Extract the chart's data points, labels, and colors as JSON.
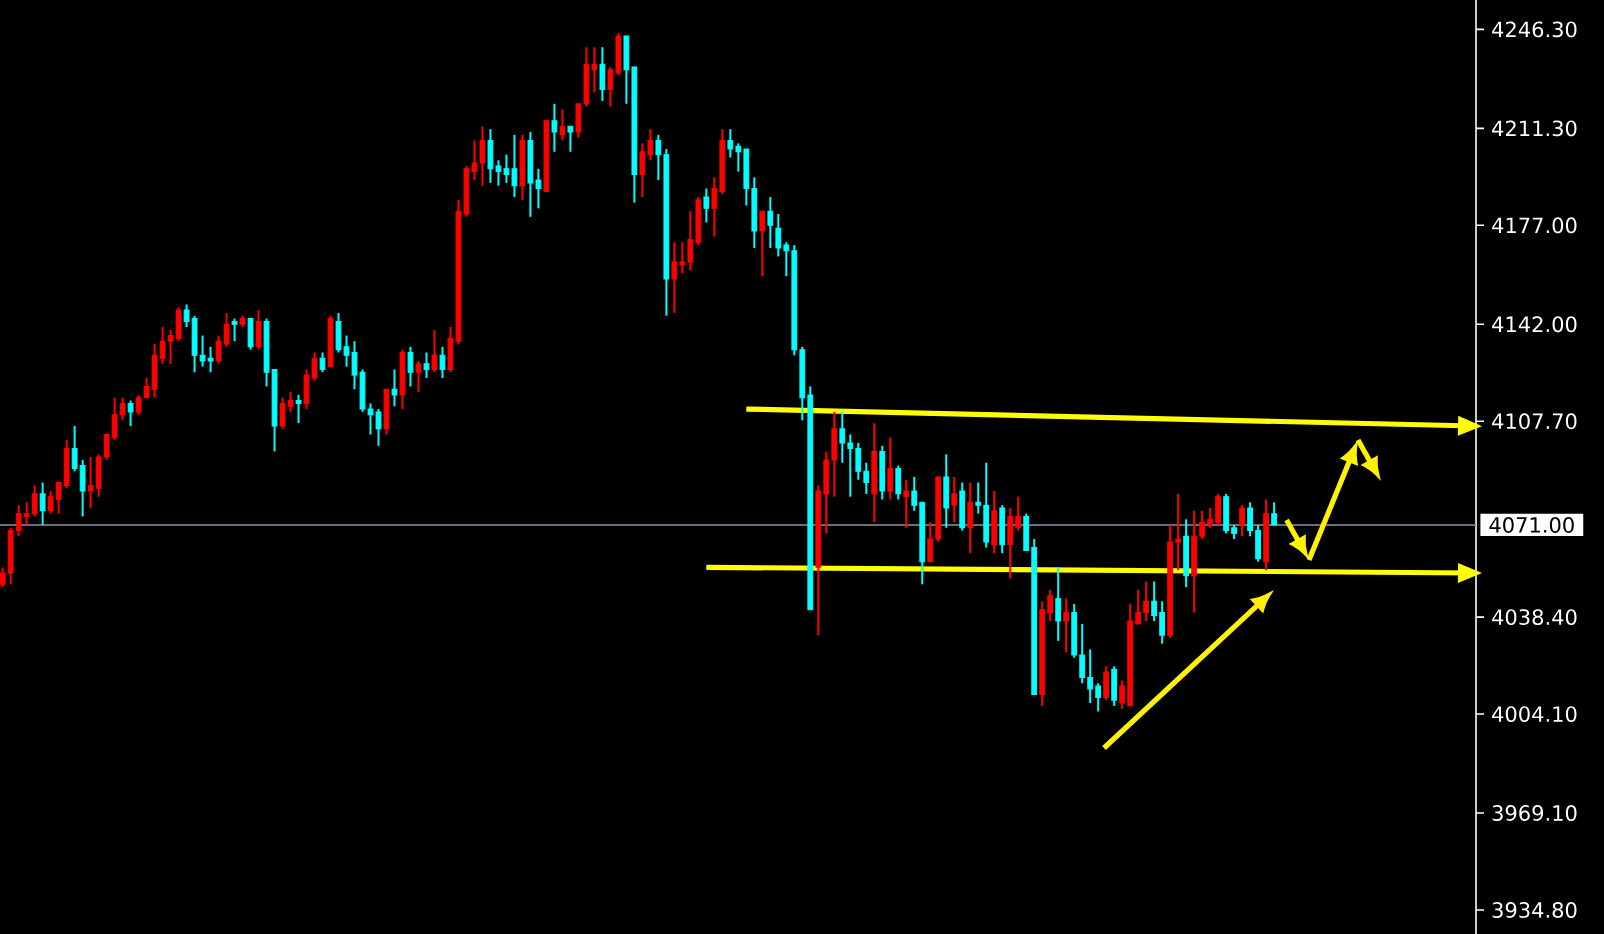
{
  "chart_data": {
    "type": "candlestick",
    "tick_labels": "y",
    "categories": [
      null,
      null,
      null,
      null,
      null,
      null,
      null,
      null,
      null,
      null,
      null,
      null,
      null,
      null,
      null,
      null,
      null,
      null,
      null,
      null,
      null,
      null,
      null,
      null,
      null,
      null,
      null,
      null,
      null,
      null,
      null,
      null,
      null,
      null,
      null,
      null,
      null,
      null,
      null,
      null,
      null,
      null,
      null,
      null,
      null,
      null,
      null,
      null,
      null,
      null,
      null,
      null,
      null,
      null,
      null,
      null,
      null,
      null,
      null,
      null,
      null,
      null,
      null,
      null,
      null,
      null,
      null,
      null,
      null,
      null,
      null,
      null,
      null,
      null,
      null,
      null,
      null,
      null,
      null,
      null,
      null,
      null,
      null,
      null,
      null,
      null,
      null,
      null,
      null,
      null,
      null,
      null,
      null,
      null,
      null,
      null,
      null,
      null,
      null,
      null,
      null,
      null,
      null,
      null,
      null,
      null,
      null,
      null,
      null,
      null,
      null,
      null,
      null,
      null,
      null,
      null,
      null,
      null,
      null,
      null,
      null,
      null,
      null,
      null,
      null,
      null,
      null,
      null,
      null,
      null,
      null,
      null,
      null,
      null,
      null,
      null,
      null,
      null,
      null,
      null,
      null,
      null,
      null,
      null,
      null,
      null,
      null,
      null,
      null,
      null,
      null,
      null,
      null,
      null,
      null,
      null,
      null,
      null,
      null,
      null,
      null,
      null,
      null,
      null,
      null,
      null,
      null,
      null,
      null,
      null,
      null,
      null,
      null,
      null,
      null,
      null,
      null,
      null,
      null,
      null,
      null,
      null,
      null,
      null,
      null
    ],
    "ylim": [
      3926.3,
      4256.7
    ],
    "yticks": [
      {
        "value": 4246.3,
        "label": "4246.30"
      },
      {
        "value": 4211.3,
        "label": "4211.30"
      },
      {
        "value": 4177,
        "label": "4177.00"
      },
      {
        "value": 4142,
        "label": "4142.00"
      },
      {
        "value": 4107.7,
        "label": "4107.70"
      },
      {
        "value": 4038.4,
        "label": "4038.40"
      },
      {
        "value": 4004.1,
        "label": "4004.10"
      },
      {
        "value": 3969.1,
        "label": "3969.10"
      },
      {
        "value": 3934.8,
        "label": "3934.80"
      }
    ],
    "ref_lines": [
      {
        "axis": "y",
        "value": 4071,
        "label": "4071.00",
        "color": "#8795a8"
      }
    ],
    "series": [
      {
        "ohlc": [
          [
            4050,
            4056,
            4049,
            4054
          ],
          [
            4054,
            4070,
            4050,
            4069
          ],
          [
            4069,
            4078,
            4067,
            4075
          ],
          [
            4074,
            4079,
            4071,
            4075
          ],
          [
            4075,
            4085,
            4074,
            4082
          ],
          [
            4082,
            4086,
            4071,
            4076
          ],
          [
            4076,
            4083,
            4075,
            4081
          ],
          [
            4080,
            4086,
            4075,
            4086
          ],
          [
            4085,
            4101,
            4084,
            4098
          ],
          [
            4098,
            4106,
            4090,
            4091
          ],
          [
            4092,
            4094,
            4074,
            4083
          ],
          [
            4083,
            4095,
            4077,
            4085
          ],
          [
            4084,
            4096,
            4081,
            4095
          ],
          [
            4095,
            4103,
            4094,
            4103
          ],
          [
            4102,
            4116,
            4101,
            4110
          ],
          [
            4110,
            4116,
            4108,
            4114
          ],
          [
            4114,
            4115,
            4106,
            4111
          ],
          [
            4111,
            4117,
            4110,
            4116
          ],
          [
            4116,
            4123,
            4116,
            4120
          ],
          [
            4119,
            4135,
            4116,
            4131
          ],
          [
            4130,
            4141,
            4128,
            4136
          ],
          [
            4136,
            4140,
            4128,
            4138
          ],
          [
            4137,
            4148,
            4136,
            4147
          ],
          [
            4147,
            4149,
            4141,
            4143
          ],
          [
            4144,
            4145,
            4125,
            4131
          ],
          [
            4131,
            4138,
            4127,
            4129
          ],
          [
            4130,
            4134,
            4125,
            4129
          ],
          [
            4129,
            4138,
            4128,
            4136
          ],
          [
            4135,
            4146,
            4134,
            4142
          ],
          [
            4143,
            4144,
            4136,
            4142
          ],
          [
            4142,
            4145,
            4141,
            4144
          ],
          [
            4144,
            4144,
            4133,
            4134
          ],
          [
            4134,
            4147,
            4133,
            4143
          ],
          [
            4143,
            4144,
            4120,
            4125
          ],
          [
            4126,
            4126,
            4097,
            4106
          ],
          [
            4106,
            4116,
            4105,
            4114
          ],
          [
            4113,
            4118,
            4111,
            4115
          ],
          [
            4115,
            4117,
            4107,
            4114
          ],
          [
            4114,
            4126,
            4112,
            4124
          ],
          [
            4123,
            4132,
            4122,
            4130
          ],
          [
            4130,
            4132,
            4125,
            4126
          ],
          [
            4127,
            4145,
            4127,
            4144
          ],
          [
            4143,
            4146,
            4132,
            4133
          ],
          [
            4134,
            4138,
            4127,
            4131
          ],
          [
            4132,
            4136,
            4119,
            4124
          ],
          [
            4125,
            4126,
            4111,
            4112
          ],
          [
            4112,
            4114,
            4103,
            4110
          ],
          [
            4111,
            4112,
            4099,
            4105
          ],
          [
            4105,
            4119,
            4103,
            4119
          ],
          [
            4119,
            4126,
            4113,
            4117
          ],
          [
            4117,
            4133,
            4112,
            4132
          ],
          [
            4132,
            4134,
            4120,
            4125
          ],
          [
            4125,
            4129,
            4118,
            4128
          ],
          [
            4128,
            4132,
            4123,
            4126
          ],
          [
            4126,
            4140,
            4125,
            4131
          ],
          [
            4131,
            4134,
            4123,
            4126
          ],
          [
            4126,
            4141,
            4125,
            4137
          ],
          [
            4136,
            4186,
            4135,
            4182
          ],
          [
            4181,
            4198,
            4180,
            4197
          ],
          [
            4196,
            4207,
            4193,
            4199
          ],
          [
            4199,
            4212,
            4191,
            4207
          ],
          [
            4207,
            4211,
            4192,
            4197
          ],
          [
            4198,
            4200,
            4191,
            4196
          ],
          [
            4197,
            4202,
            4192,
            4195
          ],
          [
            4197,
            4209,
            4187,
            4191
          ],
          [
            4191,
            4209,
            4186,
            4207
          ],
          [
            4207,
            4210,
            4180,
            4192
          ],
          [
            4193,
            4197,
            4183,
            4190
          ],
          [
            4189,
            4214,
            4189,
            4214
          ],
          [
            4214,
            4220,
            4203,
            4210
          ],
          [
            4209,
            4218,
            4207,
            4212
          ],
          [
            4212,
            4212,
            4203,
            4210
          ],
          [
            4210,
            4220,
            4208,
            4220
          ],
          [
            4220,
            4240,
            4219,
            4234
          ],
          [
            4232,
            4240,
            4224,
            4234
          ],
          [
            4234,
            4240,
            4221,
            4225
          ],
          [
            4225,
            4233,
            4219,
            4232
          ],
          [
            4231,
            4245,
            4230,
            4244
          ],
          [
            4244,
            4244,
            4220,
            4232
          ],
          [
            4233,
            4233,
            4185,
            4195
          ],
          [
            4195,
            4206,
            4187,
            4203
          ],
          [
            4202,
            4211,
            4200,
            4207
          ],
          [
            4207,
            4209,
            4193,
            4202
          ],
          [
            4202,
            4204,
            4145,
            4158
          ],
          [
            4158,
            4171,
            4146,
            4164
          ],
          [
            4163,
            4171,
            4160,
            4164
          ],
          [
            4164,
            4182,
            4161,
            4172
          ],
          [
            4171,
            4187,
            4170,
            4186
          ],
          [
            4187,
            4190,
            4178,
            4183
          ],
          [
            4183,
            4194,
            4173,
            4190
          ],
          [
            4189,
            4211,
            4188,
            4207
          ],
          [
            4207,
            4211,
            4201,
            4204
          ],
          [
            4205,
            4206,
            4196,
            4203
          ],
          [
            4204,
            4204,
            4184,
            4190
          ],
          [
            4190,
            4194,
            4169,
            4175
          ],
          [
            4175,
            4182,
            4159,
            4182
          ],
          [
            4182,
            4187,
            4169,
            4177
          ],
          [
            4176,
            4181,
            4166,
            4169
          ],
          [
            4170,
            4171,
            4159,
            4168
          ],
          [
            4168,
            4170,
            4131,
            4133
          ],
          [
            4133,
            4134,
            4108,
            4116
          ],
          [
            4117,
            4120,
            4041,
            4041
          ],
          [
            4056,
            4085,
            4032,
            4083
          ],
          [
            4082,
            4097,
            4068,
            4094
          ],
          [
            4094,
            4111,
            4081,
            4105
          ],
          [
            4105,
            4111,
            4093,
            4100
          ],
          [
            4100,
            4103,
            4081,
            4098
          ],
          [
            4098,
            4100,
            4087,
            4090
          ],
          [
            4090,
            4093,
            4082,
            4086
          ],
          [
            4082,
            4107,
            4072,
            4097
          ],
          [
            4097,
            4099,
            4080,
            4083
          ],
          [
            4083,
            4102,
            4080,
            4091
          ],
          [
            4091,
            4092,
            4080,
            4082
          ],
          [
            4081,
            4087,
            4070,
            4083
          ],
          [
            4083,
            4088,
            4076,
            4078
          ],
          [
            4079,
            4079,
            4050,
            4058
          ],
          [
            4058,
            4072,
            4058,
            4066
          ],
          [
            4066,
            4088,
            4065,
            4088
          ],
          [
            4088,
            4096,
            4070,
            4077
          ],
          [
            4078,
            4088,
            4072,
            4082
          ],
          [
            4083,
            4086,
            4069,
            4070
          ],
          [
            4070,
            4086,
            4061,
            4079
          ],
          [
            4079,
            4086,
            4075,
            4078
          ],
          [
            4078,
            4093,
            4063,
            4065
          ],
          [
            4064,
            4083,
            4061,
            4076
          ],
          [
            4077,
            4078,
            4061,
            4064
          ],
          [
            4064,
            4077,
            4052,
            4074
          ],
          [
            4070,
            4081,
            4069,
            4074
          ],
          [
            4074,
            4075,
            4062,
            4062
          ],
          [
            4063,
            4066,
            4011,
            4011
          ],
          [
            4011,
            4044,
            4007,
            4041
          ],
          [
            4040,
            4048,
            4037,
            4046
          ],
          [
            4045,
            4056,
            4030,
            4037
          ],
          [
            4037,
            4045,
            4026,
            4040
          ],
          [
            4040,
            4043,
            4024,
            4025
          ],
          [
            4025,
            4036,
            4015,
            4017
          ],
          [
            4017,
            4027,
            4008,
            4013
          ],
          [
            4014,
            4015,
            4005,
            4010
          ],
          [
            4010,
            4021,
            4009,
            4019
          ],
          [
            4020,
            4021,
            4007,
            4009
          ],
          [
            4008,
            4016,
            4006,
            4014
          ],
          [
            4007,
            4043,
            4007,
            4037
          ],
          [
            4036,
            4048,
            4036,
            4040
          ],
          [
            4040,
            4051,
            4037,
            4044
          ],
          [
            4044,
            4051,
            4037,
            4039
          ],
          [
            4040,
            4044,
            4029,
            4032
          ],
          [
            4032,
            4071,
            4031,
            4065
          ],
          [
            4065,
            4082,
            4055,
            4066
          ],
          [
            4067,
            4073,
            4049,
            4053
          ],
          [
            4053,
            4076,
            4040,
            4067
          ],
          [
            4067,
            4076,
            4066,
            4072
          ],
          [
            4071,
            4077,
            4070,
            4073
          ],
          [
            4072,
            4082,
            4071,
            4081
          ],
          [
            4081,
            4082,
            4068,
            4069
          ],
          [
            4070,
            4071,
            4066,
            4068
          ],
          [
            4071,
            4078,
            4067,
            4077
          ],
          [
            4077,
            4079,
            4067,
            4069
          ],
          [
            4069,
            4071,
            4058,
            4059
          ],
          [
            4058,
            4080,
            4055,
            4075
          ],
          [
            4075,
            4079,
            4071,
            4071
          ],
          null,
          null,
          null,
          null,
          null,
          null,
          null,
          null,
          null,
          null,
          null,
          null,
          null,
          null,
          null,
          null,
          null,
          null,
          null,
          null,
          null,
          null,
          null,
          null,
          null
        ],
        "colors": [
          "#ff0000",
          "#ff0000",
          "#ff0000",
          "#ff0000",
          "#ff0000",
          "#00ffff",
          "#ff0000",
          "#ff0000",
          "#ff0000",
          "#00ffff",
          "#00ffff",
          "#ff0000",
          "#ff0000",
          "#ff0000",
          "#ff0000",
          "#ff0000",
          "#00ffff",
          "#ff0000",
          "#ff0000",
          "#ff0000",
          "#ff0000",
          "#ff0000",
          "#ff0000",
          "#00ffff",
          "#00ffff",
          "#00ffff",
          "#00ffff",
          "#ff0000",
          "#ff0000",
          "#00ffff",
          "#ff0000",
          "#00ffff",
          "#ff0000",
          "#00ffff",
          "#00ffff",
          "#ff0000",
          "#ff0000",
          "#00ffff",
          "#ff0000",
          "#ff0000",
          "#00ffff",
          "#ff0000",
          "#00ffff",
          "#00ffff",
          "#00ffff",
          "#00ffff",
          "#00ffff",
          "#00ffff",
          "#ff0000",
          "#00ffff",
          "#ff0000",
          "#00ffff",
          "#ff0000",
          "#00ffff",
          "#ff0000",
          "#00ffff",
          "#ff0000",
          "#ff0000",
          "#ff0000",
          "#ff0000",
          "#ff0000",
          "#00ffff",
          "#00ffff",
          "#00ffff",
          "#00ffff",
          "#ff0000",
          "#00ffff",
          "#00ffff",
          "#ff0000",
          "#00ffff",
          "#ff0000",
          "#00ffff",
          "#ff0000",
          "#ff0000",
          "#ff0000",
          "#00ffff",
          "#ff0000",
          "#ff0000",
          "#00ffff",
          "#00ffff",
          "#ff0000",
          "#ff0000",
          "#00ffff",
          "#00ffff",
          "#ff0000",
          "#ff0000",
          "#ff0000",
          "#ff0000",
          "#00ffff",
          "#ff0000",
          "#ff0000",
          "#00ffff",
          "#00ffff",
          "#00ffff",
          "#00ffff",
          "#ff0000",
          "#00ffff",
          "#00ffff",
          "#00ffff",
          "#00ffff",
          "#00ffff",
          "#00ffff",
          "#ff0000",
          "#ff0000",
          "#ff0000",
          "#00ffff",
          "#00ffff",
          "#00ffff",
          "#00ffff",
          "#ff0000",
          "#00ffff",
          "#ff0000",
          "#00ffff",
          "#ff0000",
          "#00ffff",
          "#00ffff",
          "#ff0000",
          "#ff0000",
          "#00ffff",
          "#ff0000",
          "#00ffff",
          "#ff0000",
          "#00ffff",
          "#00ffff",
          "#ff0000",
          "#00ffff",
          "#ff0000",
          "#ff0000",
          "#00ffff",
          "#00ffff",
          "#ff0000",
          "#ff0000",
          "#00ffff",
          "#ff0000",
          "#00ffff",
          "#00ffff",
          "#00ffff",
          "#00ffff",
          "#ff0000",
          "#00ffff",
          "#ff0000",
          "#ff0000",
          "#ff0000",
          "#ff0000",
          "#00ffff",
          "#00ffff",
          "#ff0000",
          "#ff0000",
          "#00ffff",
          "#ff0000",
          "#ff0000",
          "#ff0000",
          "#ff0000",
          "#00ffff",
          "#00ffff",
          "#ff0000",
          "#00ffff",
          "#00ffff",
          "#ff0000",
          "#00ffff",
          null,
          null,
          null,
          null,
          null,
          null,
          null,
          null,
          null,
          null,
          null,
          null,
          null,
          null,
          null,
          null,
          null,
          null,
          null,
          null,
          null,
          null,
          null,
          null,
          null
        ]
      },
      {
        "type": "line",
        "color": "#ffff00",
        "values": [
          null,
          null,
          null,
          null,
          null,
          null,
          null,
          null,
          null,
          null,
          null,
          null,
          null,
          null,
          null,
          null,
          null,
          null,
          null,
          null,
          null,
          null,
          null,
          null,
          null,
          null,
          null,
          null,
          null,
          null,
          null,
          null,
          null,
          null,
          null,
          null,
          null,
          null,
          null,
          null,
          null,
          null,
          null,
          null,
          null,
          null,
          null,
          null,
          null,
          null,
          null,
          null,
          null,
          null,
          null,
          null,
          null,
          null,
          null,
          null,
          null,
          null,
          null,
          null,
          null,
          null,
          null,
          null,
          null,
          null,
          null,
          null,
          null,
          null,
          null,
          null,
          null,
          null,
          null,
          null,
          null,
          null,
          null,
          null,
          null,
          null,
          null,
          null,
          null,
          null,
          null,
          null,
          null,
          4112,
          null,
          null,
          null,
          null,
          null,
          null,
          null,
          null,
          null,
          null,
          null,
          null,
          null,
          null,
          null,
          null,
          null,
          null,
          null,
          null,
          null,
          null,
          null,
          null,
          null,
          null,
          null,
          null,
          null,
          null,
          null,
          null,
          null,
          null,
          null,
          null,
          null,
          null,
          null,
          null,
          null,
          null,
          null,
          null,
          null,
          null,
          null,
          null,
          null,
          null,
          null,
          null,
          null,
          null,
          null,
          null,
          null,
          null,
          null,
          null,
          null,
          null,
          null,
          null,
          null,
          null,
          null,
          null,
          null,
          null,
          null,
          null,
          null,
          null,
          null,
          null,
          null,
          null,
          null,
          null,
          null,
          null,
          null,
          null,
          null,
          null,
          null,
          null,
          null,
          null,
          4106
        ]
      },
      {
        "type": "line",
        "color": "#ffff00",
        "values": [
          null,
          null,
          null,
          null,
          null,
          null,
          null,
          null,
          null,
          null,
          null,
          null,
          null,
          null,
          null,
          null,
          null,
          null,
          null,
          null,
          null,
          null,
          null,
          null,
          null,
          null,
          null,
          null,
          null,
          null,
          null,
          null,
          null,
          null,
          null,
          null,
          null,
          null,
          null,
          null,
          null,
          null,
          null,
          null,
          null,
          null,
          null,
          null,
          null,
          null,
          null,
          null,
          null,
          null,
          null,
          null,
          null,
          null,
          null,
          null,
          null,
          null,
          null,
          null,
          null,
          null,
          null,
          null,
          null,
          null,
          null,
          null,
          null,
          null,
          null,
          null,
          null,
          null,
          null,
          null,
          null,
          null,
          null,
          null,
          null,
          null,
          null,
          null,
          4056,
          null,
          null,
          null,
          null,
          null,
          null,
          null,
          null,
          null,
          null,
          null,
          null,
          null,
          null,
          null,
          null,
          null,
          null,
          null,
          null,
          null,
          null,
          null,
          null,
          null,
          null,
          null,
          null,
          null,
          null,
          null,
          null,
          null,
          null,
          null,
          null,
          null,
          null,
          null,
          null,
          null,
          null,
          null,
          null,
          null,
          null,
          null,
          null,
          null,
          null,
          null,
          null,
          null,
          null,
          null,
          null,
          null,
          null,
          null,
          null,
          null,
          null,
          null,
          null,
          null,
          null,
          null,
          null,
          null,
          null,
          null,
          null,
          null,
          null,
          null,
          null,
          null,
          null,
          null,
          null,
          null,
          null,
          null,
          null,
          null,
          null,
          null,
          null,
          null,
          null,
          null,
          null,
          null,
          null,
          null,
          4054
        ]
      }
    ]
  }
}
